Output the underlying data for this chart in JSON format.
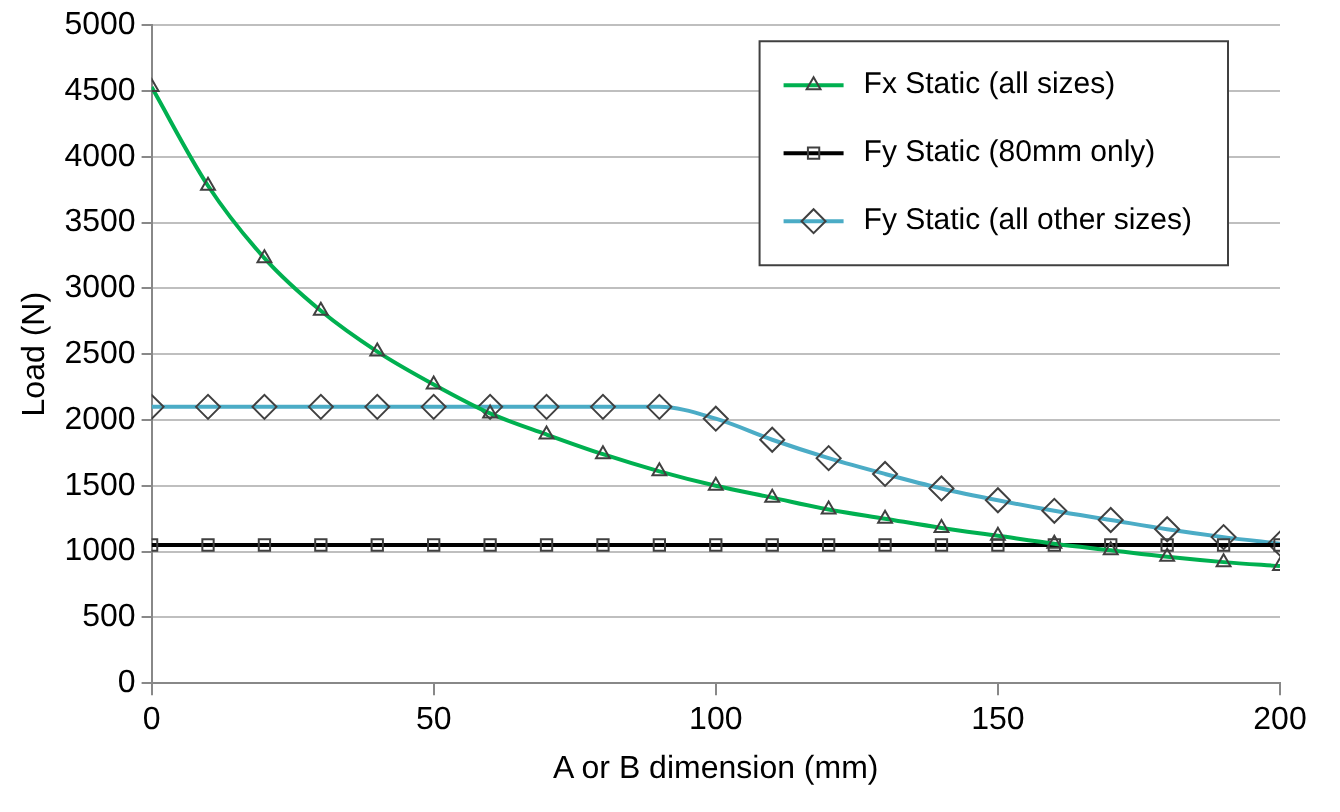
{
  "chart_data": {
    "type": "line",
    "xlabel": "A or B dimension (mm)",
    "ylabel": "Load (N)",
    "x": [
      0,
      10,
      20,
      30,
      40,
      50,
      60,
      70,
      80,
      90,
      100,
      110,
      120,
      130,
      140,
      150,
      160,
      170,
      180,
      190,
      200
    ],
    "xlim": [
      0,
      200
    ],
    "xticks": [
      0,
      50,
      100,
      150,
      200
    ],
    "ylim": [
      0,
      5000
    ],
    "yticks": [
      0,
      500,
      1000,
      1500,
      2000,
      2500,
      3000,
      3500,
      4000,
      4500,
      5000
    ],
    "grid": "y",
    "legend": "top right",
    "series": [
      {
        "name": "Fx Static (all sizes)",
        "color": "#00b050",
        "marker": "triangle",
        "values": [
          4530,
          3780,
          3230,
          2830,
          2520,
          2270,
          2050,
          1890,
          1740,
          1610,
          1500,
          1410,
          1320,
          1250,
          1180,
          1120,
          1060,
          1010,
          960,
          920,
          890
        ]
      },
      {
        "name": "Fy Static (80mm only)",
        "color": "#000000",
        "marker": "square",
        "values": [
          1050,
          1050,
          1050,
          1050,
          1050,
          1050,
          1050,
          1050,
          1050,
          1050,
          1050,
          1050,
          1050,
          1050,
          1050,
          1050,
          1050,
          1050,
          1050,
          1050,
          1050
        ]
      },
      {
        "name": "Fy Static (all other sizes)",
        "color": "#4bacc6",
        "marker": "diamond",
        "values": [
          2100,
          2100,
          2100,
          2100,
          2100,
          2100,
          2100,
          2100,
          2100,
          2100,
          2010,
          1850,
          1710,
          1590,
          1480,
          1390,
          1310,
          1240,
          1170,
          1110,
          1060
        ]
      }
    ]
  }
}
